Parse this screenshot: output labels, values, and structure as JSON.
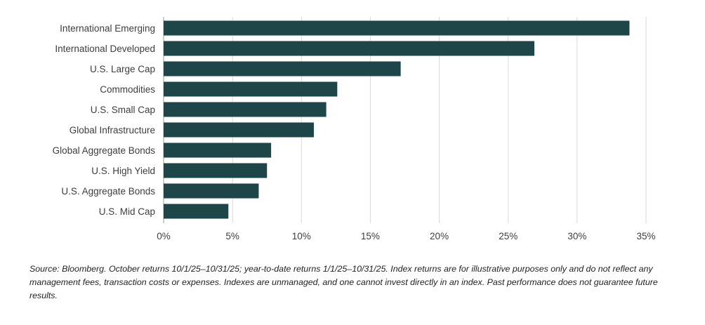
{
  "chart_data": {
    "type": "bar",
    "orientation": "horizontal",
    "categories": [
      "International Emerging",
      "International Developed",
      "U.S. Large Cap",
      "Commodities",
      "U.S. Small Cap",
      "Global Infrastructure",
      "Global Aggregate Bonds",
      "U.S. High Yield",
      "U.S. Aggregate Bonds",
      "U.S. Mid Cap"
    ],
    "values": [
      33.8,
      26.9,
      17.2,
      12.6,
      11.8,
      10.9,
      7.8,
      7.5,
      6.9,
      4.7
    ],
    "xlim": [
      0,
      35
    ],
    "xticks": [
      0,
      5,
      10,
      15,
      20,
      25,
      30,
      35
    ],
    "xtick_labels": [
      "0%",
      "5%",
      "10%",
      "15%",
      "20%",
      "25%",
      "30%",
      "35%"
    ],
    "grid": true,
    "bar_color": "#1e4548"
  },
  "footnote": {
    "source": "Source: Bloomberg. October returns 10/1/25–10/31/25; year-to-date returns 1/1/25–10/31/25. Index returns are for illustrative purposes only and do not reflect any management fees, transaction costs or expenses. Indexes are unmanaged, and one cannot invest directly in an index. Past performance does not guarantee future results."
  }
}
